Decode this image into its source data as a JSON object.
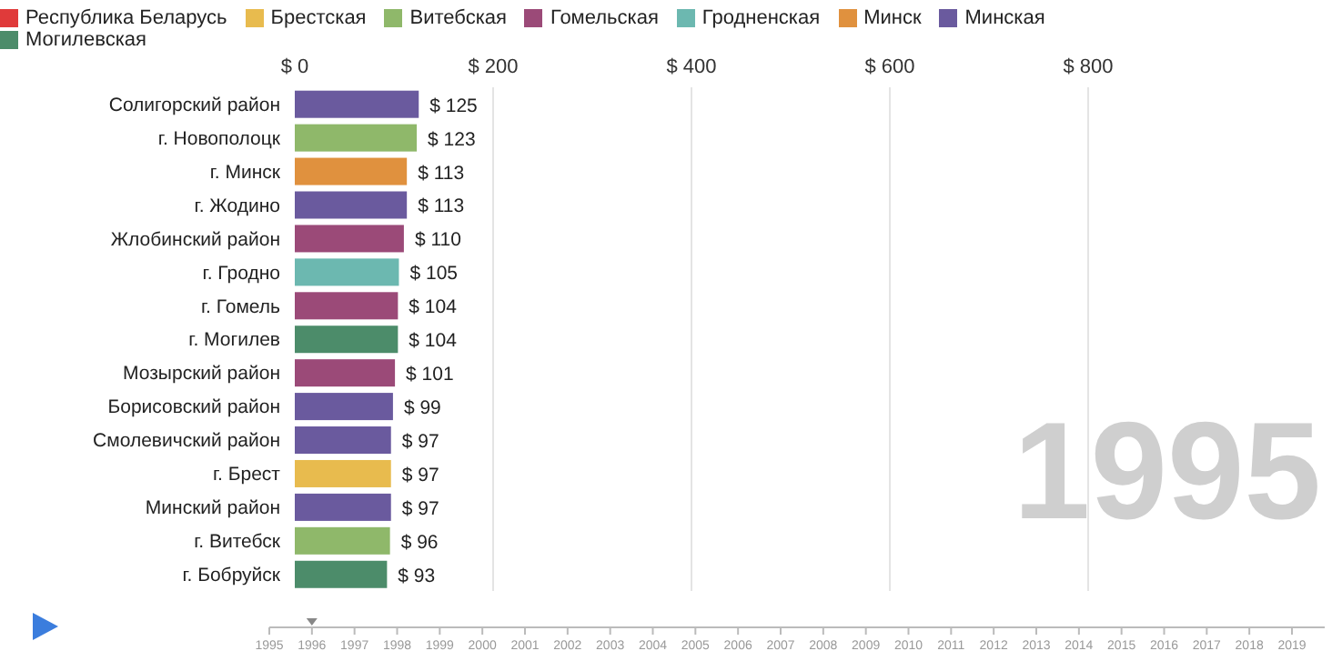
{
  "chart_data": {
    "type": "bar",
    "orientation": "horizontal",
    "stacked": true,
    "categories": [
      "Солигорский район",
      "г. Новополоцк",
      "г. Минск",
      "г. Жодино",
      "Жлобинский район",
      "г. Гродно",
      "г. Гомель",
      "г. Могилев",
      "Мозырский район",
      "Борисовский район",
      "Смолевичский район",
      "г. Брест",
      "Минский район",
      "г. Витебск",
      "г. Бобруйск"
    ],
    "series": [
      {
        "name": "Республика Беларусь",
        "color": "#e03a3a",
        "values": [
          null,
          null,
          null,
          null,
          null,
          null,
          null,
          null,
          null,
          null,
          null,
          null,
          null,
          null,
          null
        ]
      },
      {
        "name": "Брестская",
        "color": "#e8bb4e",
        "values": [
          null,
          null,
          null,
          null,
          null,
          null,
          null,
          null,
          null,
          null,
          null,
          97,
          null,
          null,
          null
        ],
        "value_labels": [
          null,
          null,
          null,
          null,
          null,
          null,
          null,
          null,
          null,
          null,
          null,
          "$ 97",
          null,
          null,
          null
        ]
      },
      {
        "name": "Витебская",
        "color": "#8fb86a",
        "values": [
          null,
          123,
          null,
          null,
          null,
          null,
          null,
          null,
          null,
          null,
          null,
          null,
          null,
          96,
          null
        ],
        "value_labels": [
          null,
          "$ 123",
          null,
          null,
          null,
          null,
          null,
          null,
          null,
          null,
          null,
          null,
          null,
          "$ 96",
          null
        ]
      },
      {
        "name": "Гомельская",
        "color": "#9b4a78",
        "values": [
          null,
          null,
          null,
          null,
          110,
          null,
          104,
          null,
          101,
          null,
          null,
          null,
          null,
          null,
          null
        ],
        "value_labels": [
          null,
          null,
          null,
          null,
          "$ 110",
          null,
          "$ 104",
          null,
          "$ 101",
          null,
          null,
          null,
          null,
          null,
          null
        ]
      },
      {
        "name": "Гродненская",
        "color": "#6cb8b0",
        "values": [
          null,
          null,
          null,
          null,
          null,
          105,
          null,
          null,
          null,
          null,
          null,
          null,
          null,
          null,
          null
        ],
        "value_labels": [
          null,
          null,
          null,
          null,
          null,
          "$ 105",
          null,
          null,
          null,
          null,
          null,
          null,
          null,
          null,
          null
        ]
      },
      {
        "name": "Минск",
        "color": "#e0913e",
        "values": [
          null,
          null,
          113,
          null,
          null,
          null,
          null,
          null,
          null,
          null,
          null,
          null,
          null,
          null,
          null
        ],
        "value_labels": [
          null,
          null,
          "$ 113",
          null,
          null,
          null,
          null,
          null,
          null,
          null,
          null,
          null,
          null,
          null,
          null
        ]
      },
      {
        "name": "Минская",
        "color": "#6a5a9e",
        "values": [
          125,
          null,
          null,
          113,
          null,
          null,
          null,
          null,
          null,
          99,
          97,
          null,
          97,
          null,
          null
        ],
        "value_labels": [
          "$ 125",
          null,
          null,
          "$ 113",
          null,
          null,
          null,
          null,
          null,
          "$ 99",
          "$ 97",
          null,
          "$ 97",
          null,
          null
        ]
      },
      {
        "name": "Могилевская",
        "color": "#4c8c6a",
        "values": [
          null,
          null,
          null,
          null,
          null,
          null,
          null,
          104,
          null,
          null,
          null,
          null,
          null,
          null,
          93
        ],
        "value_labels": [
          null,
          null,
          null,
          null,
          null,
          null,
          null,
          "$ 104",
          null,
          null,
          null,
          null,
          null,
          null,
          "$ 93"
        ]
      }
    ],
    "xlim": [
      0,
      800
    ],
    "xticks": [
      {
        "value": 0,
        "label": "$ 0"
      },
      {
        "value": 200,
        "label": "$ 200"
      },
      {
        "value": 400,
        "label": "$ 400"
      },
      {
        "value": 600,
        "label": "$ 600"
      },
      {
        "value": 800,
        "label": "$ 800"
      }
    ],
    "grid": "x",
    "legend": "top",
    "annotations": [
      "1995",
      "1995",
      "1996",
      "1997",
      "1998",
      "1999",
      "2000",
      "2001",
      "2002",
      "2003",
      "2004",
      "2005",
      "2006",
      "2007",
      "2008",
      "2009",
      "2010",
      "2011",
      "2012",
      "2013",
      "2014",
      "2015",
      "2016",
      "2017",
      "2018",
      "2019"
    ]
  }
}
